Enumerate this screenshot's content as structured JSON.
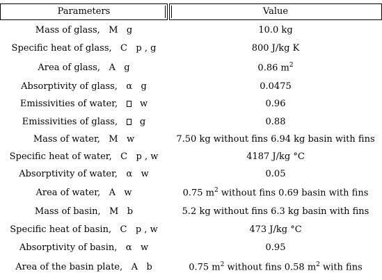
{
  "header": {
    "parameters": "Parameters",
    "value": "Value"
  },
  "rows": [
    {
      "label": "Mass of glass,",
      "sym": "M",
      "sub": "g",
      "value": "10.0 kg"
    },
    {
      "label": "Specific heat of glass,",
      "sym": "C",
      "sub": "p , g",
      "value": "800 J/kg K"
    },
    {
      "label": "Area of glass,",
      "sym": "A",
      "sub": "g",
      "value_pre": "0.86 m",
      "value_sup": "2"
    },
    {
      "label": "Absorptivity of glass,",
      "sym": "α",
      "sub": "g",
      "value": "0.0475"
    },
    {
      "label": "Emissivities of water,",
      "sym": "box-glyph",
      "sub": "w",
      "value": "0.96"
    },
    {
      "label": "Emissivities of glass,",
      "sym": "box-glyph",
      "sub": "g",
      "value": "0.88"
    },
    {
      "label": "Mass of water,",
      "sym": "M",
      "sub": "w",
      "value": "7.50 kg without fins 6.94 kg basin with fins"
    },
    {
      "label": "Specific heat of water,",
      "sym": "C",
      "sub": "p , w",
      "value": "4187 J/kg °C"
    },
    {
      "label": "Absorptivity of water,",
      "sym": "α",
      "sub": "w",
      "value": "0.05"
    },
    {
      "label": "Area of water,",
      "sym": "A",
      "sub": "w",
      "value_pre": "0.75 m",
      "value_sup": "2",
      "value_post": " without fins 0.69 basin with fins"
    },
    {
      "label": "Mass of basin,",
      "sym": "M",
      "sub": "b",
      "value": "5.2 kg without fins 6.3 kg basin with fins"
    },
    {
      "label": "Specific heat of basin,",
      "sym": "C",
      "sub": "p , w",
      "value": "473 J/kg °C"
    },
    {
      "label": "Absorptivity of basin,",
      "sym": "α",
      "sub": "w",
      "value": "0.95"
    },
    {
      "label": "Area of the basin plate,",
      "sym": "A",
      "sub": "b",
      "value_pre": "0.75 m",
      "value_sup": "2",
      "value_mid": " without fins 0.58 m",
      "value_sup2": "2",
      "value_post": " with fins"
    }
  ]
}
